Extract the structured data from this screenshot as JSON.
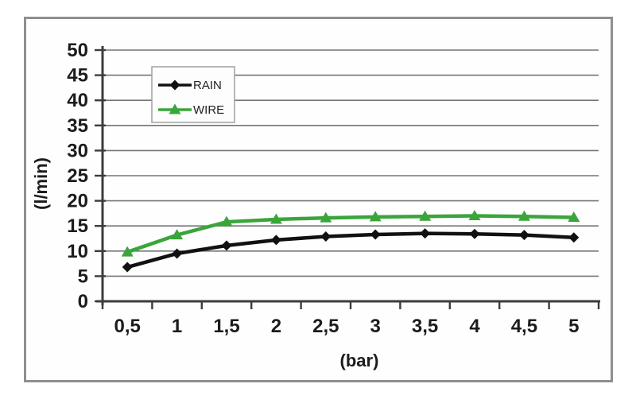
{
  "chart_data": {
    "type": "line",
    "title": "",
    "xlabel": "(bar)",
    "ylabel": "(l/min)",
    "x_categories": [
      "0,5",
      "1",
      "1,5",
      "2",
      "2,5",
      "3",
      "3,5",
      "4",
      "4,5",
      "5"
    ],
    "x_values": [
      0.5,
      1,
      1.5,
      2,
      2.5,
      3,
      3.5,
      4,
      4.5,
      5
    ],
    "y_ticks": [
      0,
      5,
      10,
      15,
      20,
      25,
      30,
      35,
      40,
      45,
      50
    ],
    "ylim": [
      0,
      50
    ],
    "grid": "horizontal",
    "legend_position": "top-left-inside",
    "series": [
      {
        "name": "RAIN",
        "color": "#111111",
        "marker": "diamond",
        "values": [
          6.8,
          9.5,
          11.1,
          12.2,
          12.9,
          13.3,
          13.5,
          13.4,
          13.2,
          12.7
        ]
      },
      {
        "name": "WIRE",
        "color": "#3aa53a",
        "marker": "triangle",
        "values": [
          9.8,
          13.2,
          15.8,
          16.3,
          16.6,
          16.8,
          16.9,
          17.0,
          16.9,
          16.7
        ]
      }
    ]
  },
  "colors": {
    "background": "#ffffff",
    "frame_border": "#8f8f8f",
    "gridline": "#757575",
    "axis": "#3c3c3c",
    "tick_text": "#1c1c1c",
    "legend_border": "#a0a0a0"
  }
}
